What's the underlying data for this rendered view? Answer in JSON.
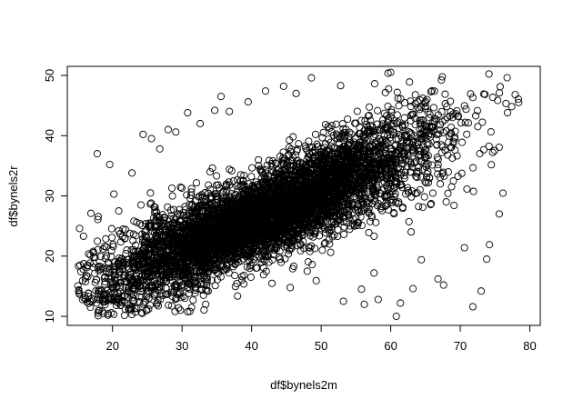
{
  "chart_data": {
    "type": "scatter",
    "title": "",
    "xlabel": "df$bynels2m",
    "ylabel": "df$bynels2r",
    "xlim": [
      13.5,
      81.5
    ],
    "ylim": [
      8.5,
      51.5
    ],
    "x_ticks": [
      20,
      30,
      40,
      50,
      60,
      70,
      80
    ],
    "y_ticks": [
      10,
      20,
      30,
      40,
      50
    ],
    "x_tick_labels": [
      "20",
      "30",
      "40",
      "50",
      "60",
      "70",
      "80"
    ],
    "y_tick_labels": [
      "10",
      "20",
      "30",
      "40",
      "50"
    ],
    "grid": false,
    "legend": "none",
    "marker": "open-circle",
    "colors": {
      "marker": "#000000",
      "axis": "#000000",
      "background": "#ffffff"
    },
    "distribution": {
      "n_points_approx": 16000,
      "x_range": [
        15,
        79
      ],
      "y_range": [
        10,
        50.5
      ],
      "trend": "positive",
      "slope_approx": 0.5,
      "intercept_approx": 6
    },
    "x": [
      17.8,
      19.6,
      20.2,
      22.8,
      24.4,
      25.6,
      26.8,
      28.0,
      29.1,
      30.8,
      32.6,
      34.7,
      35.6,
      36.8,
      39.5,
      42.0,
      44.6,
      46.4,
      48.6,
      52.8,
      53.2,
      55.8,
      57.6,
      58.2,
      60.8,
      61.4,
      63.2,
      64.4,
      66.8,
      67.6,
      70.6,
      71.8,
      73.0,
      73.8,
      74.2,
      75.6,
      76.8,
      78.4,
      77.9,
      60.0,
      51.2,
      56.2,
      48.0,
      21.3,
      16.9,
      29.5,
      33.4,
      45.9,
      39.9,
      62.7
    ],
    "y": [
      37.0,
      35.2,
      30.3,
      33.8,
      40.2,
      39.5,
      37.8,
      41.0,
      40.6,
      43.8,
      42.0,
      44.2,
      46.5,
      44.0,
      45.6,
      47.4,
      48.2,
      47.0,
      49.6,
      48.3,
      12.5,
      14.5,
      17.2,
      12.8,
      10.0,
      12.2,
      14.6,
      19.4,
      16.2,
      15.2,
      21.4,
      11.6,
      14.2,
      19.5,
      21.9,
      27.0,
      43.8,
      45.5,
      46.8,
      50.5,
      22.0,
      12.0,
      17.5,
      12.3,
      27.1,
      11.4,
      12.0,
      17.9,
      16.5,
      48.9
    ]
  }
}
